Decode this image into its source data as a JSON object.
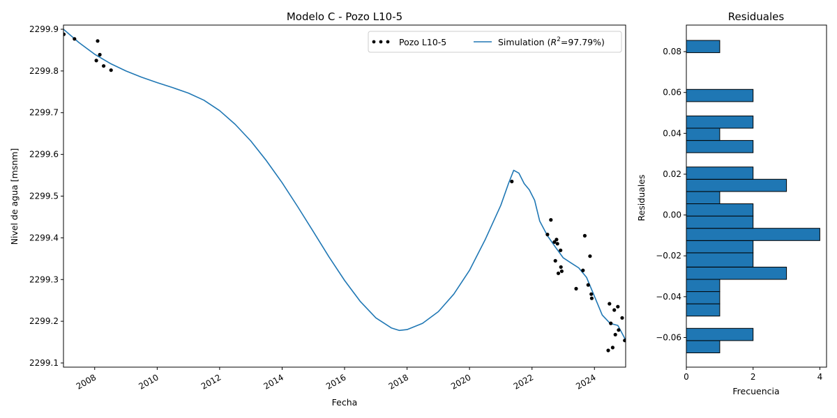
{
  "chart_data": [
    {
      "type": "line",
      "title": "Modelo C - Pozo L10-5",
      "xlabel": "Fecha",
      "ylabel": "Nivel de agua [msnm]",
      "xlim": [
        "2007-01-01",
        "2024-12-31"
      ],
      "ylim": [
        2299.09,
        2299.91
      ],
      "x_ticks": [
        "2008",
        "2010",
        "2012",
        "2014",
        "2016",
        "2018",
        "2020",
        "2022",
        "2024"
      ],
      "y_ticks": [
        "2299.1",
        "2299.2",
        "2299.3",
        "2299.4",
        "2299.5",
        "2299.6",
        "2299.7",
        "2299.8",
        "2299.9"
      ],
      "grid": false,
      "legend_position": "upper-right",
      "series": [
        {
          "name": "Pozo L10-5",
          "kind": "scatter",
          "color": "#000000",
          "legend_label": "Pozo L10-5",
          "points": [
            [
              "2007-01-05",
              2299.888
            ],
            [
              "2007-05-10",
              2299.877
            ],
            [
              "2008-01-20",
              2299.825
            ],
            [
              "2008-02-05",
              2299.872
            ],
            [
              "2008-03-01",
              2299.839
            ],
            [
              "2008-04-15",
              2299.812
            ],
            [
              "2008-07-10",
              2299.802
            ],
            [
              "2021-05-10",
              2299.535
            ],
            [
              "2022-07-01",
              2299.408
            ],
            [
              "2022-08-10",
              2299.443
            ],
            [
              "2022-09-20",
              2299.39
            ],
            [
              "2022-10-01",
              2299.345
            ],
            [
              "2022-10-15",
              2299.396
            ],
            [
              "2022-10-25",
              2299.386
            ],
            [
              "2022-11-05",
              2299.315
            ],
            [
              "2022-12-01",
              2299.37
            ],
            [
              "2022-12-05",
              2299.33
            ],
            [
              "2022-12-15",
              2299.32
            ],
            [
              "2023-06-01",
              2299.278
            ],
            [
              "2023-08-20",
              2299.322
            ],
            [
              "2023-09-10",
              2299.405
            ],
            [
              "2023-10-20",
              2299.287
            ],
            [
              "2023-11-10",
              2299.356
            ],
            [
              "2023-11-25",
              2299.265
            ],
            [
              "2023-12-01",
              2299.255
            ],
            [
              "2024-06-10",
              2299.13
            ],
            [
              "2024-06-25",
              2299.242
            ],
            [
              "2024-07-10",
              2299.195
            ],
            [
              "2024-08-01",
              2299.137
            ],
            [
              "2024-08-20",
              2299.227
            ],
            [
              "2024-09-01",
              2299.168
            ],
            [
              "2024-10-01",
              2299.235
            ],
            [
              "2024-10-10",
              2299.179
            ],
            [
              "2024-11-20",
              2299.208
            ],
            [
              "2024-12-20",
              2299.154
            ]
          ]
        },
        {
          "name": "Simulation",
          "kind": "line",
          "color": "#1f77b4",
          "legend_label": "Simulation",
          "legend_r2_suffix": "=97.79%)",
          "legend_r2_symbol": "R",
          "legend_r2_exponent": "2",
          "points": [
            [
              "2007-01-01",
              2299.9
            ],
            [
              "2007-07-01",
              2299.868
            ],
            [
              "2008-01-01",
              2299.84
            ],
            [
              "2008-07-01",
              2299.818
            ],
            [
              "2009-01-01",
              2299.8
            ],
            [
              "2009-07-01",
              2299.785
            ],
            [
              "2010-01-01",
              2299.772
            ],
            [
              "2010-07-01",
              2299.76
            ],
            [
              "2011-01-01",
              2299.747
            ],
            [
              "2011-07-01",
              2299.73
            ],
            [
              "2012-01-01",
              2299.705
            ],
            [
              "2012-07-01",
              2299.672
            ],
            [
              "2013-01-01",
              2299.632
            ],
            [
              "2013-07-01",
              2299.585
            ],
            [
              "2014-01-01",
              2299.532
            ],
            [
              "2014-07-01",
              2299.475
            ],
            [
              "2015-01-01",
              2299.415
            ],
            [
              "2015-07-01",
              2299.355
            ],
            [
              "2016-01-01",
              2299.298
            ],
            [
              "2016-07-01",
              2299.248
            ],
            [
              "2017-01-01",
              2299.208
            ],
            [
              "2017-07-01",
              2299.184
            ],
            [
              "2017-10-01",
              2299.178
            ],
            [
              "2018-01-01",
              2299.18
            ],
            [
              "2018-07-01",
              2299.195
            ],
            [
              "2019-01-01",
              2299.223
            ],
            [
              "2019-07-01",
              2299.265
            ],
            [
              "2020-01-01",
              2299.322
            ],
            [
              "2020-07-01",
              2299.395
            ],
            [
              "2021-01-01",
              2299.478
            ],
            [
              "2021-04-01",
              2299.53
            ],
            [
              "2021-06-01",
              2299.562
            ],
            [
              "2021-08-01",
              2299.555
            ],
            [
              "2021-10-01",
              2299.53
            ],
            [
              "2021-12-01",
              2299.515
            ],
            [
              "2022-02-01",
              2299.49
            ],
            [
              "2022-04-01",
              2299.44
            ],
            [
              "2022-07-01",
              2299.405
            ],
            [
              "2022-10-01",
              2299.378
            ],
            [
              "2023-01-01",
              2299.352
            ],
            [
              "2023-04-01",
              2299.34
            ],
            [
              "2023-07-01",
              2299.328
            ],
            [
              "2023-10-01",
              2299.305
            ],
            [
              "2024-01-01",
              2299.26
            ],
            [
              "2024-04-01",
              2299.215
            ],
            [
              "2024-07-01",
              2299.195
            ],
            [
              "2024-10-01",
              2299.19
            ],
            [
              "2024-12-31",
              2299.155
            ]
          ]
        }
      ]
    },
    {
      "type": "bar",
      "orientation": "horizontal",
      "title": "Residuales",
      "xlabel": "Frecuencia",
      "ylabel": "Residuales",
      "xlim": [
        0,
        4.2
      ],
      "ylim": [
        -0.0745,
        0.093
      ],
      "x_ticks": [
        "0",
        "2",
        "4"
      ],
      "y_ticks": [
        "−0.06",
        "−0.04",
        "−0.02",
        "0.00",
        "0.02",
        "0.04",
        "0.06",
        "0.08"
      ],
      "bar_color": "#1f77b4",
      "edge_color": "#000000",
      "bins": [
        {
          "lo": -0.0675,
          "hi": -0.0615,
          "count": 1
        },
        {
          "lo": -0.0615,
          "hi": -0.0555,
          "count": 2
        },
        {
          "lo": -0.0495,
          "hi": -0.0435,
          "count": 1
        },
        {
          "lo": -0.0435,
          "hi": -0.0375,
          "count": 1
        },
        {
          "lo": -0.0375,
          "hi": -0.0315,
          "count": 1
        },
        {
          "lo": -0.0315,
          "hi": -0.0255,
          "count": 3
        },
        {
          "lo": -0.0255,
          "hi": -0.0185,
          "count": 2
        },
        {
          "lo": -0.0185,
          "hi": -0.0125,
          "count": 2
        },
        {
          "lo": -0.0125,
          "hi": -0.0065,
          "count": 4
        },
        {
          "lo": -0.0065,
          "hi": -0.0005,
          "count": 2
        },
        {
          "lo": -0.0005,
          "hi": 0.0055,
          "count": 2
        },
        {
          "lo": 0.0055,
          "hi": 0.0115,
          "count": 1
        },
        {
          "lo": 0.0115,
          "hi": 0.0175,
          "count": 3
        },
        {
          "lo": 0.0175,
          "hi": 0.0235,
          "count": 2
        },
        {
          "lo": 0.0305,
          "hi": 0.0365,
          "count": 2
        },
        {
          "lo": 0.0365,
          "hi": 0.0425,
          "count": 1
        },
        {
          "lo": 0.0425,
          "hi": 0.0485,
          "count": 2
        },
        {
          "lo": 0.0555,
          "hi": 0.0615,
          "count": 2
        },
        {
          "lo": 0.0795,
          "hi": 0.0855,
          "count": 1
        }
      ]
    }
  ]
}
